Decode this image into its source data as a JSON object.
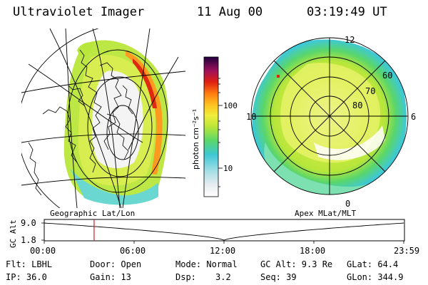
{
  "header": {
    "instrument": "Ultraviolet Imager",
    "date": "11 Aug 00",
    "time": "03:19:49 UT"
  },
  "left_map": {
    "label": "Geographic Lat/Lon"
  },
  "right_map": {
    "label": "Apex MLat/MLT",
    "mlt_labels": [
      "12",
      "18",
      "6",
      "0"
    ],
    "mlat_labels": [
      "60",
      "70",
      "80"
    ]
  },
  "colorbar": {
    "unit_label": "photon cm⁻²s⁻¹",
    "tick_labels": [
      "100",
      "10"
    ],
    "scale": "log"
  },
  "altitude_plot": {
    "ylabel": "GC Alt",
    "y_ticks": [
      "9.0",
      "1.8"
    ],
    "x_ticks": [
      "00:00",
      "06:00",
      "12:00",
      "18:00",
      "23:59"
    ],
    "current_time_hours": 3.33,
    "marker_color": "#cc2222"
  },
  "info": {
    "filter": "Flt: LBHL",
    "door": "Door: Open",
    "mode": "Mode: Normal",
    "gc_alt": "GC Alt: 9.3 Re",
    "glat": "GLat:  64.4",
    "ip": "IP: 36.0",
    "gain": "Gain: 13",
    "dsp_label": "Dsp:",
    "dsp_value": "3.2",
    "seq": "Seq: 39",
    "glon": "GLon: 344.9"
  }
}
